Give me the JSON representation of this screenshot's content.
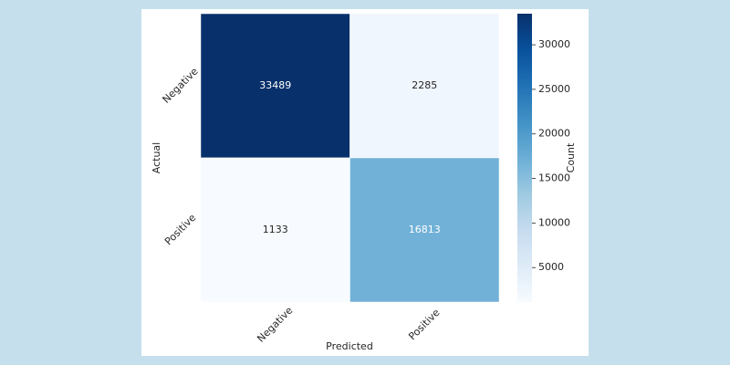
{
  "chart_data": {
    "type": "heatmap",
    "x_label": "Predicted",
    "y_label": "Actual",
    "x_categories": [
      "Negative",
      "Positive"
    ],
    "y_categories": [
      "Negative",
      "Positive"
    ],
    "values": [
      [
        33489,
        2285
      ],
      [
        1133,
        16813
      ]
    ],
    "colormap": "Blues",
    "colorbar_label": "Count",
    "clim": [
      1133,
      33489
    ],
    "cticks": [
      5000,
      10000,
      15000,
      20000,
      25000,
      30000
    ]
  }
}
